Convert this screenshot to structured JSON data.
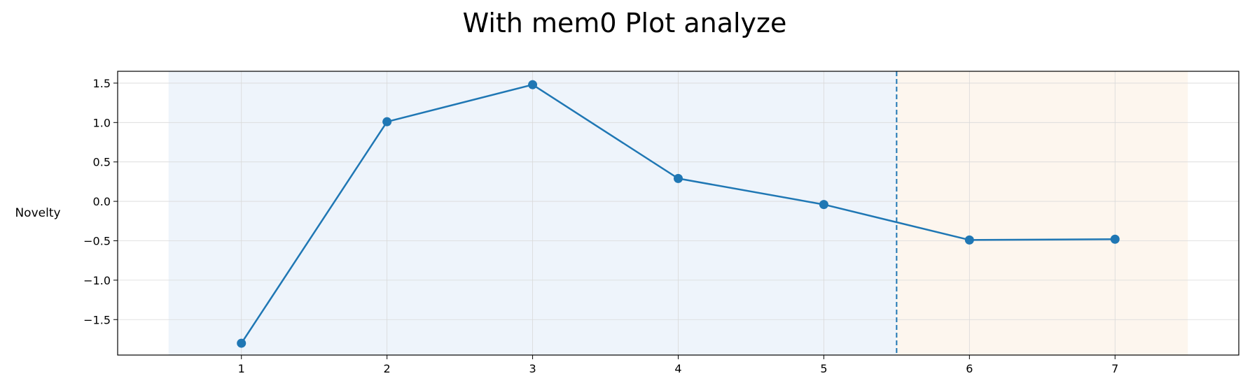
{
  "chart_data": {
    "type": "line",
    "title": "With mem0 Plot analyze",
    "xlabel": "",
    "ylabel": "Novelty",
    "x": [
      1,
      2,
      3,
      4,
      5,
      6,
      7
    ],
    "xticks": [
      "1",
      "2",
      "3",
      "4",
      "5",
      "6",
      "7"
    ],
    "xlim": [
      0.15,
      7.85
    ],
    "ylim": [
      -1.95,
      1.65
    ],
    "yticks": [
      1.5,
      1.0,
      0.5,
      0.0,
      -0.5,
      -1.0,
      -1.5
    ],
    "ytick_labels": [
      "1.5",
      "1.0",
      "0.5",
      "0.0",
      "−0.5",
      "−1.0",
      "−1.5"
    ],
    "series": [
      {
        "values": [
          -1.8,
          1.01,
          1.48,
          0.29,
          -0.04,
          -0.49,
          -0.48
        ],
        "color": "#1f77b4"
      }
    ],
    "shaded_regions": [
      {
        "x_start": 0.5,
        "x_end": 5.5,
        "color": "#eef4fb"
      },
      {
        "x_start": 5.5,
        "x_end": 7.5,
        "color": "#fdf6ee"
      }
    ],
    "vertical_lines": [
      {
        "x": 5.5,
        "style": "dashed",
        "color": "#1f77b4"
      }
    ],
    "grid": true
  }
}
